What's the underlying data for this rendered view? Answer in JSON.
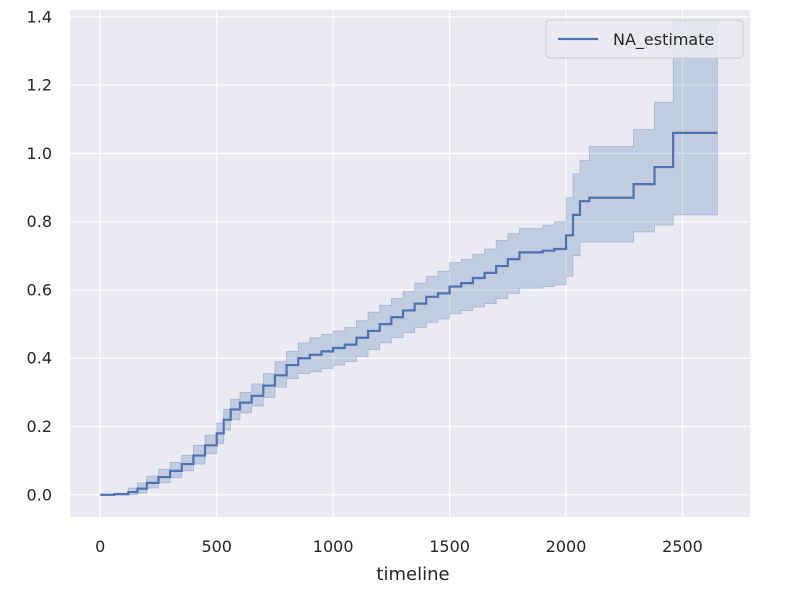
{
  "chart_data": {
    "type": "line",
    "title": "",
    "xlabel": "timeline",
    "ylabel": "",
    "xlim": [
      -130,
      2790
    ],
    "ylim": [
      -0.065,
      1.42
    ],
    "xticks": [
      0,
      500,
      1000,
      1500,
      2000,
      2500
    ],
    "xtick_labels": [
      "0",
      "500",
      "1000",
      "1500",
      "2000",
      "2500"
    ],
    "yticks": [
      0.0,
      0.2,
      0.4,
      0.6,
      0.8,
      1.0,
      1.2,
      1.4
    ],
    "ytick_labels": [
      "0.0",
      "0.2",
      "0.4",
      "0.6",
      "0.8",
      "1.0",
      "1.2",
      "1.4"
    ],
    "grid": true,
    "legend": {
      "position": "top-right",
      "entries": [
        "NA_estimate"
      ]
    },
    "colors": {
      "line": "#4c72b0",
      "band": "#4c72b0",
      "background": "#eaeaf2",
      "grid": "#ffffff"
    },
    "series": [
      {
        "name": "NA_estimate",
        "x": [
          0,
          60,
          120,
          160,
          200,
          250,
          300,
          350,
          400,
          450,
          500,
          530,
          560,
          600,
          650,
          700,
          750,
          800,
          850,
          900,
          950,
          1000,
          1050,
          1100,
          1150,
          1200,
          1250,
          1300,
          1350,
          1400,
          1450,
          1500,
          1550,
          1600,
          1650,
          1700,
          1750,
          1800,
          1850,
          1900,
          1950,
          2000,
          2030,
          2060,
          2100,
          2200,
          2290,
          2340,
          2380,
          2420,
          2460,
          2500,
          2560,
          2650
        ],
        "y": [
          0.0,
          0.002,
          0.008,
          0.018,
          0.035,
          0.052,
          0.07,
          0.09,
          0.115,
          0.145,
          0.18,
          0.22,
          0.25,
          0.27,
          0.29,
          0.32,
          0.35,
          0.38,
          0.4,
          0.41,
          0.42,
          0.43,
          0.44,
          0.46,
          0.48,
          0.5,
          0.52,
          0.54,
          0.56,
          0.58,
          0.59,
          0.61,
          0.62,
          0.635,
          0.65,
          0.67,
          0.69,
          0.71,
          0.71,
          0.715,
          0.72,
          0.76,
          0.82,
          0.86,
          0.87,
          0.87,
          0.91,
          0.91,
          0.96,
          0.96,
          1.06,
          1.06,
          1.06,
          1.06
        ],
        "lower": [
          0.0,
          0.0,
          0.0,
          0.005,
          0.02,
          0.035,
          0.05,
          0.07,
          0.09,
          0.12,
          0.15,
          0.19,
          0.22,
          0.24,
          0.26,
          0.285,
          0.315,
          0.34,
          0.355,
          0.36,
          0.37,
          0.38,
          0.39,
          0.405,
          0.425,
          0.445,
          0.46,
          0.475,
          0.49,
          0.505,
          0.515,
          0.53,
          0.54,
          0.55,
          0.56,
          0.575,
          0.59,
          0.605,
          0.605,
          0.61,
          0.615,
          0.64,
          0.7,
          0.74,
          0.74,
          0.74,
          0.77,
          0.77,
          0.79,
          0.79,
          0.82,
          0.82,
          0.82,
          0.82
        ],
        "upper": [
          0.0,
          0.005,
          0.02,
          0.035,
          0.055,
          0.075,
          0.095,
          0.115,
          0.145,
          0.175,
          0.21,
          0.25,
          0.28,
          0.3,
          0.325,
          0.355,
          0.39,
          0.42,
          0.445,
          0.46,
          0.47,
          0.48,
          0.49,
          0.51,
          0.535,
          0.555,
          0.575,
          0.595,
          0.62,
          0.64,
          0.655,
          0.68,
          0.69,
          0.705,
          0.72,
          0.745,
          0.765,
          0.78,
          0.78,
          0.79,
          0.8,
          0.87,
          0.94,
          0.98,
          1.02,
          1.02,
          1.07,
          1.07,
          1.15,
          1.15,
          1.39,
          1.39,
          1.39,
          1.39
        ]
      }
    ]
  }
}
